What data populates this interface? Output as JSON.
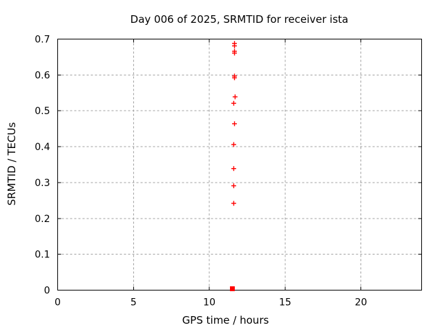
{
  "window": {
    "background": "#ffffff"
  },
  "chart_data": {
    "type": "scatter",
    "title": "Day 006 of 2025, SRMTID for receiver ista",
    "xlabel": "GPS time / hours",
    "ylabel": "SRMTID / TECUs",
    "xlim": [
      0,
      24
    ],
    "ylim": [
      0,
      0.7
    ],
    "grid": true,
    "grid_style": "dashed",
    "legend": "none",
    "xticks": [
      {
        "v": 0,
        "label": "0"
      },
      {
        "v": 5,
        "label": "5"
      },
      {
        "v": 10,
        "label": "10"
      },
      {
        "v": 15,
        "label": "15"
      },
      {
        "v": 20,
        "label": "20"
      }
    ],
    "yticks": [
      {
        "v": 0,
        "label": "0"
      },
      {
        "v": 0.1,
        "label": "0.1"
      },
      {
        "v": 0.2,
        "label": "0.2"
      },
      {
        "v": 0.3,
        "label": "0.3"
      },
      {
        "v": 0.4,
        "label": "0.4"
      },
      {
        "v": 0.5,
        "label": "0.5"
      },
      {
        "v": 0.6,
        "label": "0.6"
      },
      {
        "v": 0.7,
        "label": "0.7"
      }
    ],
    "series": [
      {
        "name": "srmtid-values",
        "marker": "plus",
        "color": "#ff0000",
        "points": [
          [
            11.66,
            0.688
          ],
          [
            11.66,
            0.681
          ],
          [
            11.66,
            0.666
          ],
          [
            11.66,
            0.661
          ],
          [
            11.66,
            0.597
          ],
          [
            11.66,
            0.592
          ],
          [
            11.7,
            0.539
          ],
          [
            11.61,
            0.521
          ],
          [
            11.66,
            0.464
          ],
          [
            11.61,
            0.406
          ],
          [
            11.61,
            0.339
          ],
          [
            11.61,
            0.291
          ],
          [
            11.61,
            0.242
          ]
        ]
      },
      {
        "name": "zero-level-marker",
        "marker": "filled-square",
        "color": "#ff0000",
        "points": [
          [
            11.52,
            0.004
          ]
        ]
      }
    ],
    "colors": {
      "border": "#000000",
      "grid": "#a0a0a0",
      "text": "#000000",
      "marker": "#ff0000"
    }
  }
}
